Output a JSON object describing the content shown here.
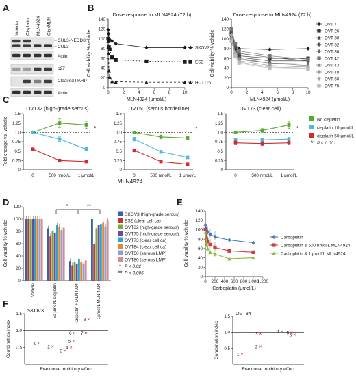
{
  "panels": {
    "A": {
      "label": "A",
      "columns": [
        "Vehicle",
        "Cisplatin",
        "MLN4924",
        "Cis+MLN"
      ],
      "bands": [
        "CUL3-NEDD8",
        "CUL3",
        "Actin",
        "p27",
        "Cleaved PARP",
        "Actin"
      ]
    },
    "B": {
      "label": "B"
    },
    "C": {
      "label": "C",
      "caption": "MLN4924"
    },
    "D": {
      "label": "D"
    },
    "E": {
      "label": "E"
    },
    "F": {
      "label": "F"
    }
  },
  "chart_data": [
    {
      "id": "B-left",
      "type": "line",
      "title": "Dose response to MLN4924 (72 h)",
      "xlabel": "MLN4924 (μmol/L)",
      "ylabel": "Cell viability % vehicle",
      "xlim": [
        0,
        10
      ],
      "ylim": [
        0,
        140
      ],
      "xticks": [
        0,
        2,
        4,
        6,
        8,
        10
      ],
      "yticks": [
        0,
        20,
        40,
        60,
        80,
        100,
        120,
        140
      ],
      "series": [
        {
          "name": "SKOV3",
          "style": "solid-diamond",
          "x": [
            0,
            0.05,
            0.1,
            0.2,
            0.5,
            1,
            5,
            10
          ],
          "y": [
            118,
            110,
            100,
            98,
            95,
            90,
            82,
            82
          ]
        },
        {
          "name": "ES2",
          "style": "dotted-square",
          "x": [
            0,
            0.05,
            0.1,
            0.2,
            0.5,
            1,
            5,
            10
          ],
          "y": [
            100,
            95,
            83,
            78,
            62,
            57,
            54,
            53
          ]
        },
        {
          "name": "HCT116",
          "style": "dashed-triangle",
          "x": [
            0,
            0.05,
            0.1,
            0.2,
            0.5,
            1,
            5,
            10
          ],
          "y": [
            95,
            70,
            35,
            22,
            13,
            12,
            11,
            11
          ]
        }
      ]
    },
    {
      "id": "B-right",
      "type": "line",
      "title": "Dose response to MLN4924 (72 h)",
      "xlabel": "MLN4924 (μmol/L)",
      "ylabel": "Cell viability % vehicle",
      "xlim": [
        0,
        10
      ],
      "ylim": [
        0,
        140
      ],
      "xticks": [
        0,
        2,
        4,
        6,
        8,
        10
      ],
      "yticks": [
        0,
        20,
        40,
        60,
        80,
        100,
        120,
        140
      ],
      "series": [
        {
          "name": "OVT 7",
          "x": [
            0,
            0.5,
            1,
            5,
            10
          ],
          "y": [
            105,
            88,
            80,
            78,
            80
          ]
        },
        {
          "name": "OVT 26",
          "x": [
            0,
            0.5,
            1,
            5,
            10
          ],
          "y": [
            110,
            80,
            65,
            60,
            60
          ]
        },
        {
          "name": "OVT 30",
          "x": [
            0,
            0.5,
            1,
            5,
            10
          ],
          "y": [
            100,
            75,
            62,
            55,
            55
          ]
        },
        {
          "name": "OVT 32",
          "x": [
            0,
            0.5,
            1,
            5,
            10
          ],
          "y": [
            115,
            85,
            70,
            62,
            55
          ]
        },
        {
          "name": "OVT 36",
          "x": [
            0,
            0.5,
            1,
            5,
            10
          ],
          "y": [
            100,
            70,
            58,
            50,
            48
          ]
        },
        {
          "name": "OVT 42",
          "x": [
            0,
            0.5,
            1,
            5,
            10
          ],
          "y": [
            120,
            90,
            75,
            65,
            58
          ]
        },
        {
          "name": "OVT 43",
          "x": [
            0,
            0.5,
            1,
            5,
            10
          ],
          "y": [
            105,
            72,
            60,
            50,
            45
          ]
        },
        {
          "name": "OVT 48",
          "x": [
            0,
            0.5,
            1,
            5,
            10
          ],
          "y": [
            98,
            70,
            55,
            45,
            42
          ]
        },
        {
          "name": "OVT 50",
          "x": [
            0,
            0.5,
            1,
            5,
            10
          ],
          "y": [
            108,
            68,
            52,
            42,
            40
          ]
        },
        {
          "name": "OVT 70",
          "x": [
            0,
            0.5,
            1,
            5,
            10
          ],
          "y": [
            95,
            65,
            50,
            40,
            38
          ]
        }
      ]
    },
    {
      "id": "C-1",
      "type": "line",
      "title": "OVT32 (high-grade serous)",
      "ylabel": "Fold change vs. vehicle",
      "categories": [
        "0",
        "500 nmol/L",
        "1 μmol/L"
      ],
      "ylim": [
        0,
        1.5
      ],
      "yticks": [
        0,
        0.25,
        0.5,
        0.75,
        1.0,
        1.25,
        1.5
      ],
      "ytick_labels": [
        "0",
        "0.25",
        "0.5",
        "0.75",
        "1.0",
        "1.25",
        "1.5"
      ],
      "significance": "*",
      "series": [
        {
          "name": "No cisplatin",
          "color": "#5aa832",
          "values": [
            1.0,
            1.25,
            1.2
          ],
          "err": [
            0,
            0.12,
            0.1
          ]
        },
        {
          "name": "cisplatin 10 μmol/L",
          "color": "#4bbbd8",
          "values": [
            1.0,
            0.82,
            0.55
          ],
          "err": [
            0,
            0.06,
            0.05
          ]
        },
        {
          "name": "cisplatin 50 μmol/L",
          "color": "#d42b2b",
          "values": [
            0.55,
            0.25,
            0.22
          ],
          "err": [
            0.04,
            0.03,
            0.02
          ]
        }
      ]
    },
    {
      "id": "C-2",
      "type": "line",
      "title": "OVT50 (serous borderline)",
      "categories": [
        "0",
        "500 nmol/L",
        "1 μmol/L"
      ],
      "ylim": [
        0,
        1.5
      ],
      "yticks": [
        0,
        0.25,
        0.5,
        0.75,
        1.0,
        1.25,
        1.5
      ],
      "ytick_labels": [
        "0",
        "0.25",
        "0.5",
        "0.75",
        "1.0",
        "1.25",
        "1.5"
      ],
      "significance": "*",
      "series": [
        {
          "name": "No cisplatin",
          "color": "#5aa832",
          "values": [
            1.0,
            0.88,
            0.85
          ],
          "err": [
            0,
            0.05,
            0.05
          ]
        },
        {
          "name": "cisplatin 10 μmol/L",
          "color": "#4bbbd8",
          "values": [
            0.82,
            0.48,
            0.33
          ],
          "err": [
            0.05,
            0.04,
            0.03
          ]
        },
        {
          "name": "cisplatin 50 μmol/L",
          "color": "#d42b2b",
          "values": [
            0.52,
            0.22,
            0.15
          ],
          "err": [
            0.04,
            0.02,
            0.02
          ]
        }
      ]
    },
    {
      "id": "C-3",
      "type": "line",
      "title": "OVT73 (clear cell)",
      "categories": [
        "0",
        "500 nmol/L",
        "1 μmol/L"
      ],
      "ylim": [
        0,
        1.5
      ],
      "yticks": [
        0,
        0.25,
        0.5,
        0.75,
        1.0,
        1.25,
        1.5
      ],
      "ytick_labels": [
        "0",
        "0.25",
        "0.5",
        "0.75",
        "1.0",
        "1.25",
        "1.5"
      ],
      "significance": "*",
      "series": [
        {
          "name": "No cisplatin",
          "color": "#5aa832",
          "values": [
            1.0,
            1.05,
            1.2
          ],
          "err": [
            0,
            0.05,
            0.1
          ]
        },
        {
          "name": "cisplatin 10 μmol/L",
          "color": "#4bbbd8",
          "values": [
            0.8,
            0.8,
            0.82
          ],
          "err": [
            0.04,
            0.05,
            0.05
          ]
        },
        {
          "name": "cisplatin 50 μmol/L",
          "color": "#d42b2b",
          "values": [
            0.72,
            0.7,
            0.72
          ],
          "err": [
            0.05,
            0.05,
            0.05
          ]
        }
      ]
    },
    {
      "id": "C-legend",
      "type": "legend",
      "entries": [
        {
          "name": "No cisplatin",
          "color": "#5aa832"
        },
        {
          "name": "cisplatin 10 μmol/L",
          "color": "#4bbbd8"
        },
        {
          "name": "cisplatin 50 μmol/L",
          "color": "#d42b2b"
        }
      ],
      "note_symbol": "*",
      "note_text": "P < 0.001"
    },
    {
      "id": "D",
      "type": "bar",
      "ylabel": "Cell viability % vehicle",
      "ylim": [
        0,
        120
      ],
      "yticks": [
        0,
        20,
        40,
        60,
        80,
        100,
        120
      ],
      "categories": [
        "Vehicle",
        "50 μmol/L cisplatin",
        "Cisplatin + MLN4924",
        "1μmol/L MLN 4924"
      ],
      "series": [
        {
          "name": "SKOV3 (high-grade serous)",
          "color": "#3b5fb0",
          "values": [
            100,
            85,
            32,
            100
          ]
        },
        {
          "name": "ES2 (clear cell ca)",
          "color": "#c0392b",
          "values": [
            100,
            72,
            25,
            60
          ]
        },
        {
          "name": "OVT32 (high-grade serous)",
          "color": "#7aab3c",
          "values": [
            100,
            80,
            30,
            85
          ]
        },
        {
          "name": "OVT75 (high-grade serous)",
          "color": "#6b4b9e",
          "values": [
            100,
            78,
            28,
            90
          ]
        },
        {
          "name": "OVT73 (clear cell ca)",
          "color": "#2aa6c8",
          "values": [
            100,
            90,
            35,
            92
          ]
        },
        {
          "name": "OVT84 (clear cell ca)",
          "color": "#e8872a",
          "values": [
            100,
            88,
            30,
            95
          ]
        },
        {
          "name": "OVT50 (serous LMP)",
          "color": "#8aa0d8",
          "values": [
            100,
            82,
            28,
            88
          ]
        },
        {
          "name": "OVT80 (serous LMP)",
          "color": "#d98a8a",
          "values": [
            100,
            86,
            33,
            97
          ]
        }
      ],
      "significance": [
        {
          "symbol": "*",
          "label": "P < 0.02"
        },
        {
          "symbol": "**",
          "label": "P < 0.005"
        }
      ]
    },
    {
      "id": "E",
      "type": "line",
      "xlabel": "Carboplatin (μmol/L)",
      "ylabel": "Cell viability % vehicle",
      "xlim": [
        0,
        1200
      ],
      "ylim": [
        0,
        140
      ],
      "xticks": [
        0,
        200,
        400,
        600,
        800,
        1000,
        1200
      ],
      "xtick_labels": [
        "0",
        "200",
        "400",
        "600",
        "800",
        "1,000",
        "1,200"
      ],
      "yticks": [
        0,
        20,
        40,
        60,
        80,
        100,
        120,
        140
      ],
      "series": [
        {
          "name": "Carboplatin",
          "color": "#4a78b8",
          "x": [
            0,
            25,
            50,
            100,
            200,
            500,
            1000
          ],
          "y": [
            110,
            98,
            95,
            90,
            85,
            78,
            72
          ]
        },
        {
          "name": "Carboplatin & 500 nmol/L MLN4924",
          "color": "#c94040",
          "x": [
            0,
            25,
            50,
            100,
            200,
            500,
            1000
          ],
          "y": [
            100,
            80,
            75,
            68,
            62,
            55,
            52
          ]
        },
        {
          "name": "Carboplatin & 1 μmol/L MLN4924",
          "color": "#8ab83a",
          "x": [
            0,
            25,
            50,
            100,
            200,
            500,
            1000
          ],
          "y": [
            95,
            68,
            60,
            52,
            48,
            38,
            40
          ]
        }
      ]
    },
    {
      "id": "F-left",
      "type": "scatter",
      "title": "SKOV3",
      "xlabel": "Fractional inhibitory effect",
      "ylabel": "Combination index",
      "xlim": [
        0,
        1
      ],
      "ylim": [
        0,
        1.5
      ],
      "yticks": [
        0.5,
        1.0,
        1.5
      ],
      "ytick_labels": [
        "0.5",
        "1.0",
        "1.5"
      ],
      "reference_line": 1.0,
      "points": [
        {
          "label": "1",
          "x": 0.14,
          "y": 0.62
        },
        {
          "label": "2",
          "x": 0.31,
          "y": 0.52
        },
        {
          "label": "3",
          "x": 0.46,
          "y": 0.4
        },
        {
          "label": "4",
          "x": 0.53,
          "y": 0.5
        },
        {
          "label": "5",
          "x": 0.56,
          "y": 0.68
        },
        {
          "label": "6",
          "x": 0.57,
          "y": 0.92
        },
        {
          "label": "7",
          "x": 0.71,
          "y": 0.92
        },
        {
          "label": "8",
          "x": 0.74,
          "y": 1.32
        }
      ]
    },
    {
      "id": "F-right",
      "type": "scatter",
      "title": "OVT84",
      "xlabel": "Fractional inhibitory effect",
      "ylabel": "Combination index",
      "xlim": [
        0,
        1
      ],
      "ylim": [
        0,
        1.5
      ],
      "yticks": [
        0.5,
        1.0,
        1.5
      ],
      "ytick_labels": [
        "0.5",
        "1.0",
        "1.5"
      ],
      "reference_line": 1.0,
      "points": [
        {
          "label": "1",
          "x": 0.1,
          "y": 0.3
        },
        {
          "label": "2",
          "x": 0.36,
          "y": 0.55
        },
        {
          "label": "3",
          "x": 0.36,
          "y": 0.95
        },
        {
          "label": "4",
          "x": 0.66,
          "y": 1.02
        },
        {
          "label": "5",
          "x": 0.8,
          "y": 0.98
        },
        {
          "label": "6",
          "x": 0.84,
          "y": 0.92
        }
      ]
    }
  ]
}
